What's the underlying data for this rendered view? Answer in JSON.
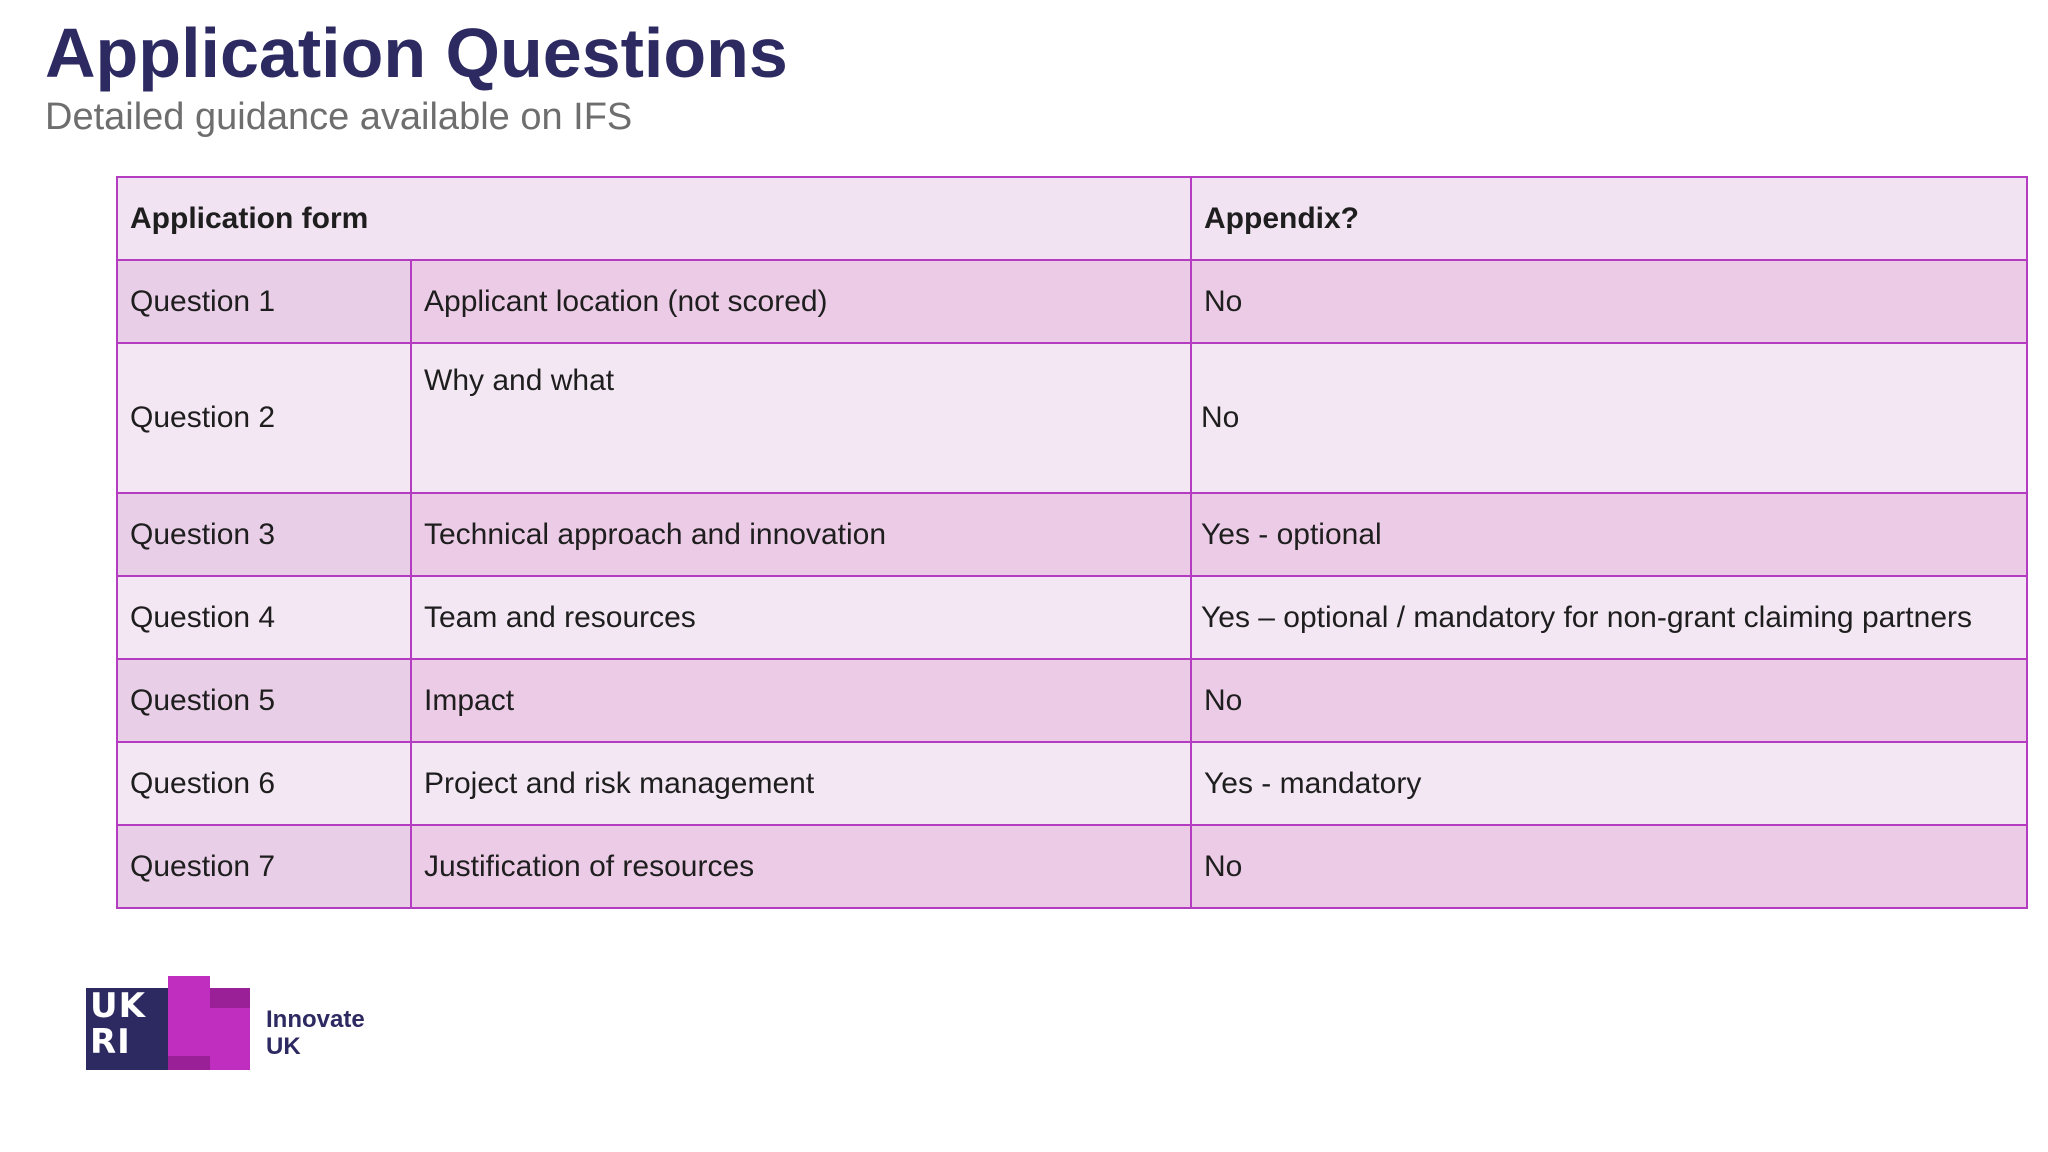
{
  "slide": {
    "title": "Application Questions",
    "subtitle": "Detailed guidance available on IFS"
  },
  "table": {
    "header": {
      "form": "Application form",
      "appendix": "Appendix?"
    },
    "rows": [
      {
        "question": "Question 1",
        "description": "Applicant location (not scored)",
        "appendix": "No"
      },
      {
        "question": "Question 2",
        "description": "Why and what",
        "appendix": "No"
      },
      {
        "question": "Question 3",
        "description": "Technical approach and innovation",
        "appendix": "Yes - optional"
      },
      {
        "question": "Question 4",
        "description": "Team and resources",
        "appendix": "Yes – optional / mandatory for non-grant claiming partners"
      },
      {
        "question": "Question 5",
        "description": "Impact",
        "appendix": "No"
      },
      {
        "question": "Question 6",
        "description": "Project and risk management",
        "appendix": "Yes - mandatory"
      },
      {
        "question": "Question 7",
        "description": "Justification of resources",
        "appendix": "No"
      }
    ]
  },
  "logo": {
    "mark_text": "UKRI",
    "line1": "Innovate",
    "line2": "UK"
  },
  "colors": {
    "title": "#2d2a62",
    "border": "#b43cc0",
    "brand_magenta": "#c02ebf"
  }
}
